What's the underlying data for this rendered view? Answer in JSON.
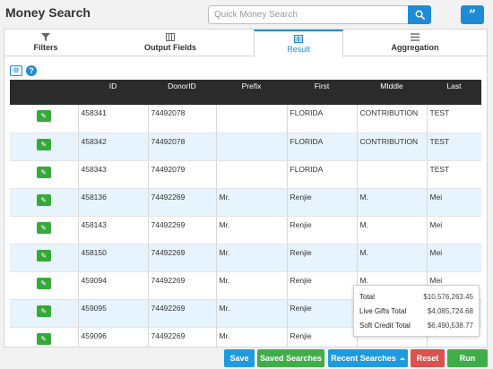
{
  "header": {
    "title": "Money Search",
    "search_placeholder": "Quick Money Search"
  },
  "tabs": [
    {
      "label": "Filters",
      "icon": "filter-icon"
    },
    {
      "label": "Output Fields",
      "icon": "columns-icon"
    },
    {
      "label": "Result",
      "icon": "table-icon",
      "active": true
    },
    {
      "label": "Aggregation",
      "icon": "list-icon"
    }
  ],
  "table": {
    "columns": [
      "",
      "ID",
      "DonorID",
      "Prefix",
      "First",
      "MIddle",
      "Last"
    ],
    "rows": [
      {
        "id": "458341",
        "donor": "74492078",
        "prefix": "",
        "first": "FLORIDA",
        "middle": "CONTRIBUTION",
        "last": "TEST"
      },
      {
        "id": "458342",
        "donor": "74492078",
        "prefix": "",
        "first": "FLORIDA",
        "middle": "CONTRIBUTION",
        "last": "TEST"
      },
      {
        "id": "458343",
        "donor": "74492079",
        "prefix": "",
        "first": "FLORIDA",
        "middle": "",
        "last": "TEST"
      },
      {
        "id": "458136",
        "donor": "74492269",
        "prefix": "Mr.",
        "first": "Renjie",
        "middle": "M.",
        "last": "Mei"
      },
      {
        "id": "458143",
        "donor": "74492269",
        "prefix": "Mr.",
        "first": "Renjie",
        "middle": "M.",
        "last": "Mei"
      },
      {
        "id": "458150",
        "donor": "74492269",
        "prefix": "Mr.",
        "first": "Renjie",
        "middle": "M.",
        "last": "Mei"
      },
      {
        "id": "459094",
        "donor": "74492269",
        "prefix": "Mr.",
        "first": "Renjie",
        "middle": "M.",
        "last": "Mei"
      },
      {
        "id": "459095",
        "donor": "74492269",
        "prefix": "Mr.",
        "first": "Renjie",
        "middle": "",
        "last": ""
      },
      {
        "id": "459096",
        "donor": "74492269",
        "prefix": "Mr.",
        "first": "Renjie",
        "middle": "",
        "last": ""
      }
    ]
  },
  "totals": {
    "total_label": "Total",
    "total_value": "$10,576,263.45",
    "live_label": "Live Gifts Total",
    "live_value": "$4,085,724.68",
    "soft_label": "Soft Credit Total",
    "soft_value": "$6,490,538.77"
  },
  "buttons": {
    "save": "Save",
    "saved_searches": "Saved Searches",
    "recent_searches": "Recent Searches",
    "reset": "Reset",
    "run": "Run"
  },
  "colors": {
    "primary": "#1e8bd6",
    "success": "#3fae49",
    "danger": "#d9534f",
    "header_bg": "#2b2b2b",
    "row_alt": "#e7f3fd"
  }
}
